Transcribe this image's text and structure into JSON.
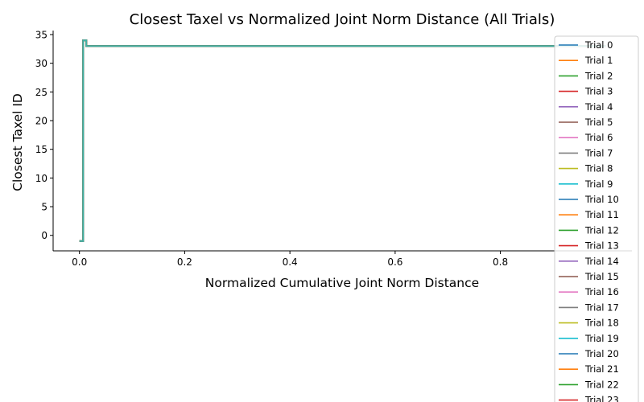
{
  "chart_data": {
    "type": "line",
    "title": "Closest Taxel vs Normalized Joint Norm Distance (All Trials)",
    "xlabel": "Normalized Cumulative Joint Norm Distance",
    "ylabel": "Closest Taxel ID",
    "xlim": [
      -0.05,
      1.05
    ],
    "ylim": [
      -2.7,
      35.7
    ],
    "x_ticks": [
      "0.0",
      "0.2",
      "0.4",
      "0.6",
      "0.8"
    ],
    "x_tick_values": [
      0.0,
      0.2,
      0.4,
      0.6,
      0.8
    ],
    "y_ticks": [
      "0",
      "5",
      "10",
      "15",
      "20",
      "25",
      "30",
      "35"
    ],
    "y_tick_values": [
      0,
      5,
      10,
      15,
      20,
      25,
      30,
      35
    ],
    "step_profile": {
      "x": [
        0.0,
        0.007,
        0.007,
        0.013,
        0.013,
        1.0
      ],
      "y": [
        -1,
        -1,
        34,
        34,
        33,
        33
      ]
    },
    "grid": false,
    "legend_position": "right",
    "colors": [
      "#1f77b4",
      "#ff7f0e",
      "#2ca02c",
      "#d62728",
      "#9467bd",
      "#8c564b",
      "#e377c2",
      "#7f7f7f",
      "#bcbd22",
      "#17becf"
    ],
    "visible_line_color": "#3fb3a8",
    "series": [
      {
        "name": "Trial 0"
      },
      {
        "name": "Trial 1"
      },
      {
        "name": "Trial 2"
      },
      {
        "name": "Trial 3"
      },
      {
        "name": "Trial 4"
      },
      {
        "name": "Trial 5"
      },
      {
        "name": "Trial 6"
      },
      {
        "name": "Trial 7"
      },
      {
        "name": "Trial 8"
      },
      {
        "name": "Trial 9"
      },
      {
        "name": "Trial 10"
      },
      {
        "name": "Trial 11"
      },
      {
        "name": "Trial 12"
      },
      {
        "name": "Trial 13"
      },
      {
        "name": "Trial 14"
      },
      {
        "name": "Trial 15"
      },
      {
        "name": "Trial 16"
      },
      {
        "name": "Trial 17"
      },
      {
        "name": "Trial 18"
      },
      {
        "name": "Trial 19"
      },
      {
        "name": "Trial 20"
      },
      {
        "name": "Trial 21"
      },
      {
        "name": "Trial 22"
      },
      {
        "name": "Trial 23"
      }
    ]
  }
}
